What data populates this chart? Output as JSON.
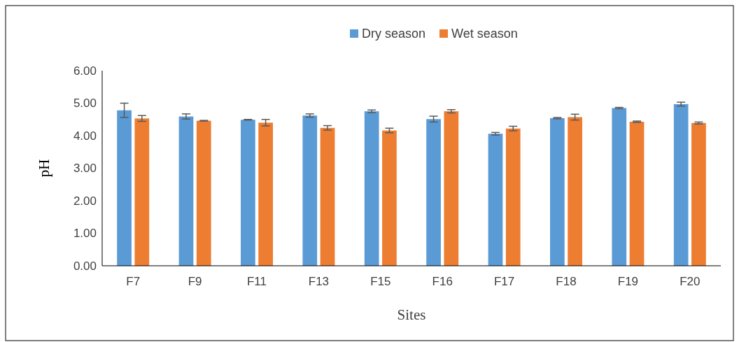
{
  "chart_data": {
    "type": "bar",
    "xlabel": "Sites",
    "ylabel": "pH",
    "categories": [
      "F7",
      "F9",
      "F11",
      "F13",
      "F15",
      "F16",
      "F17",
      "F18",
      "F19",
      "F20"
    ],
    "series": [
      {
        "name": "Dry season",
        "color": "#5b9bd5",
        "values": [
          4.78,
          4.59,
          4.49,
          4.62,
          4.75,
          4.51,
          4.06,
          4.54,
          4.85,
          4.97
        ],
        "errors": [
          0.22,
          0.08,
          0.01,
          0.05,
          0.04,
          0.09,
          0.04,
          0.02,
          0.02,
          0.06
        ]
      },
      {
        "name": "Wet season",
        "color": "#ed7d31",
        "values": [
          4.53,
          4.46,
          4.4,
          4.24,
          4.16,
          4.75,
          4.22,
          4.57,
          4.43,
          4.39
        ],
        "errors": [
          0.09,
          0.01,
          0.1,
          0.07,
          0.07,
          0.05,
          0.07,
          0.09,
          0.02,
          0.03
        ]
      }
    ],
    "ylim": [
      0,
      6
    ],
    "yticks": [
      {
        "value": 0,
        "label": "0.00"
      },
      {
        "value": 1,
        "label": "1.00"
      },
      {
        "value": 2,
        "label": "2.00"
      },
      {
        "value": 3,
        "label": "3.00"
      },
      {
        "value": 4,
        "label": "4.00"
      },
      {
        "value": 5,
        "label": "5.00"
      },
      {
        "value": 6,
        "label": "6.00"
      }
    ],
    "legend": "top",
    "grid": false
  }
}
